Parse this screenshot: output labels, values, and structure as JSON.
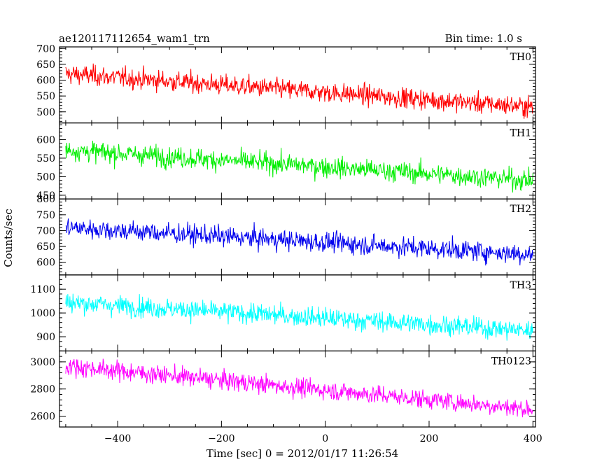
{
  "header": {
    "title": "ae120117112654_wam1_trn",
    "bin_time": "Bin time: 1.0 s"
  },
  "chart_data": {
    "type": "line",
    "xlabel": "Time [sec] 0 = 2012/01/17 11:26:54",
    "ylabel": "Counts/sec",
    "xlim": [
      -512,
      405
    ],
    "x_ticks": [
      -400,
      -200,
      0,
      200,
      400
    ],
    "x_minor_step": 50,
    "bin_time_s": 1.0,
    "panels": [
      {
        "name": "TH0",
        "color": "#ff0000",
        "ylim": [
          465,
          705
        ],
        "y_ticks": [
          500,
          550,
          600,
          650,
          700
        ],
        "start": 620,
        "end": 515,
        "noise": 30
      },
      {
        "name": "TH1",
        "color": "#00ee00",
        "ylim": [
          440,
          645
        ],
        "y_ticks": [
          450,
          500,
          550,
          600
        ],
        "start": 572,
        "end": 490,
        "noise": 26
      },
      {
        "name": "TH2",
        "color": "#0000ee",
        "ylim": [
          560,
          800
        ],
        "y_ticks": [
          600,
          650,
          700,
          750,
          800
        ],
        "start": 710,
        "end": 625,
        "noise": 30
      },
      {
        "name": "TH3",
        "color": "#00ffff",
        "ylim": [
          840,
          1160
        ],
        "y_ticks": [
          900,
          1000,
          1100
        ],
        "start": 1045,
        "end": 925,
        "noise": 40
      },
      {
        "name": "TH0123",
        "color": "#ff00ff",
        "ylim": [
          2520,
          3080
        ],
        "y_ticks": [
          2600,
          2800,
          3000
        ],
        "start": 2970,
        "end": 2650,
        "noise": 65
      }
    ]
  }
}
